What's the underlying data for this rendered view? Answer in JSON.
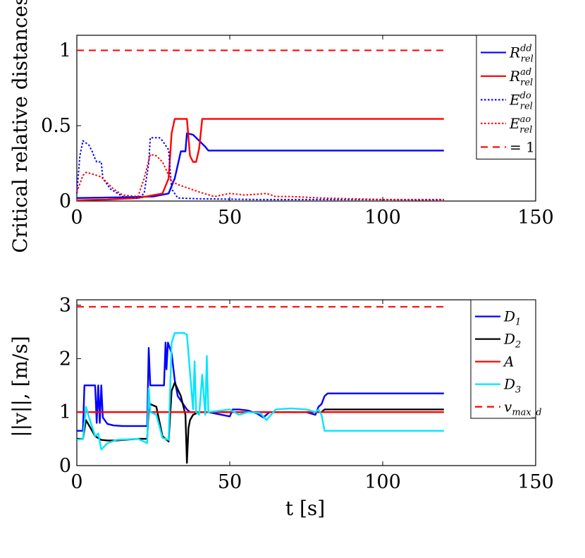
{
  "chart_data": [
    {
      "type": "line",
      "ylabel": "Critical relative distances",
      "xlabel": "",
      "xlim": [
        0,
        150
      ],
      "ylim": [
        0,
        1.1
      ],
      "xticks": [
        "0",
        "50",
        "100",
        "150"
      ],
      "yticks": [
        "0",
        "0.5",
        "1"
      ],
      "legend_position": "top-right",
      "series": [
        {
          "name": "R_rel^dd",
          "label_main": "R",
          "label_sup": "dd",
          "label_sub": "rel",
          "color": "#0000ff",
          "style": "solid",
          "x": [
            0,
            15,
            25,
            30,
            32,
            34,
            35.5,
            36,
            38,
            40,
            42,
            43,
            120
          ],
          "y": [
            0.02,
            0.025,
            0.03,
            0.05,
            0.15,
            0.33,
            0.33,
            0.45,
            0.44,
            0.4,
            0.36,
            0.335,
            0.335
          ]
        },
        {
          "name": "R_rel^ad",
          "label_main": "R",
          "label_sup": "ad",
          "label_sub": "rel",
          "color": "#ff0000",
          "style": "solid",
          "x": [
            0,
            10,
            20,
            28,
            30,
            31,
            32,
            36,
            37,
            38,
            39,
            40,
            41,
            42,
            120
          ],
          "y": [
            0.005,
            0.01,
            0.02,
            0.05,
            0.15,
            0.45,
            0.545,
            0.545,
            0.3,
            0.26,
            0.26,
            0.35,
            0.545,
            0.545,
            0.545
          ]
        },
        {
          "name": "E_rel^do",
          "label_main": "E",
          "label_sup": "do",
          "label_sub": "rel",
          "color": "#0000ff",
          "style": "dotted",
          "x": [
            0,
            1,
            2,
            4,
            5,
            6,
            6.5,
            8,
            8.5,
            11,
            15,
            20,
            22,
            23.5,
            24,
            27,
            28,
            30,
            31,
            33,
            40,
            60,
            80,
            100,
            120
          ],
          "y": [
            0.05,
            0.3,
            0.4,
            0.37,
            0.33,
            0.28,
            0.26,
            0.26,
            0.15,
            0.08,
            0.03,
            0.02,
            0.05,
            0.25,
            0.42,
            0.42,
            0.4,
            0.34,
            0.08,
            0.02,
            0.015,
            0.01,
            0.01,
            0.01,
            0.01
          ]
        },
        {
          "name": "E_rel^ao",
          "label_main": "E",
          "label_sup": "ao",
          "label_sub": "rel",
          "color": "#ff0000",
          "style": "dotted",
          "x": [
            0,
            2,
            3,
            5,
            8,
            12,
            15,
            20,
            22,
            24,
            26,
            28,
            31,
            33,
            40,
            45,
            50,
            55,
            62,
            65,
            70,
            80,
            100,
            120
          ],
          "y": [
            0.06,
            0.17,
            0.19,
            0.18,
            0.16,
            0.08,
            0.04,
            0.03,
            0.15,
            0.31,
            0.3,
            0.26,
            0.13,
            0.11,
            0.06,
            0.03,
            0.05,
            0.04,
            0.05,
            0.03,
            0.03,
            0.02,
            0.01,
            0.005
          ]
        },
        {
          "name": "= 1",
          "label_main": "= 1",
          "label_sup": "",
          "label_sub": "",
          "color": "#ff0000",
          "style": "dashed",
          "x": [
            0,
            120
          ],
          "y": [
            1,
            1
          ]
        }
      ]
    },
    {
      "type": "line",
      "ylabel": "||v||, [m/s]",
      "xlabel": "t [s]",
      "xlim": [
        0,
        150
      ],
      "ylim": [
        0,
        3.1
      ],
      "xticks": [
        "0",
        "50",
        "100",
        "150"
      ],
      "yticks": [
        "0",
        "1",
        "2",
        "3"
      ],
      "legend_position": "top-right",
      "series": [
        {
          "name": "D_1",
          "label_main": "D",
          "label_sup": "",
          "label_sub": "1",
          "color": "#0000ff",
          "style": "solid",
          "x": [
            0,
            2,
            2.5,
            6,
            6.5,
            7,
            7.5,
            8,
            8.5,
            10,
            12,
            15,
            20,
            23,
            23.5,
            24,
            24.5,
            28.5,
            29,
            29.3,
            29.8,
            31,
            32,
            33,
            36,
            37,
            38,
            40,
            41,
            42,
            43,
            50,
            51,
            53,
            56,
            59,
            61,
            63,
            65,
            70,
            75,
            78,
            79,
            80,
            81,
            82,
            120
          ],
          "y": [
            0.65,
            0.65,
            1.5,
            1.5,
            0.8,
            1.5,
            0.8,
            1.5,
            0.9,
            0.78,
            0.75,
            0.74,
            0.74,
            0.74,
            2.2,
            1.5,
            1.5,
            1.5,
            2.3,
            1.8,
            2.3,
            2.1,
            1.6,
            1.3,
            1.05,
            1.0,
            1.0,
            1.0,
            1.0,
            1.0,
            1.0,
            0.92,
            1.05,
            1.05,
            1.03,
            0.97,
            0.9,
            1.0,
            1.0,
            1.0,
            1.0,
            0.95,
            1.1,
            1.15,
            1.3,
            1.35,
            1.35
          ]
        },
        {
          "name": "D_2",
          "label_main": "D",
          "label_sup": "",
          "label_sub": "2",
          "color": "#000000",
          "style": "solid",
          "x": [
            0,
            2,
            3,
            5,
            6,
            8,
            10,
            13,
            20,
            23,
            23.5,
            24,
            26,
            28,
            30,
            31,
            32,
            34,
            35.5,
            36,
            36.5,
            37,
            38,
            40,
            45,
            60,
            80,
            81,
            82,
            120
          ],
          "y": [
            0.5,
            0.5,
            0.85,
            0.65,
            0.55,
            0.48,
            0.47,
            0.47,
            0.5,
            0.5,
            1.05,
            1.15,
            1.1,
            0.55,
            0.45,
            1.4,
            1.55,
            1.3,
            0.95,
            0.05,
            0.7,
            0.85,
            0.95,
            1.0,
            1.0,
            1.0,
            1.0,
            1.05,
            1.05,
            1.05
          ]
        },
        {
          "name": "A",
          "label_main": "A",
          "label_sup": "",
          "label_sub": "",
          "color": "#ff0000",
          "style": "solid",
          "x": [
            0,
            120
          ],
          "y": [
            1.0,
            1.0
          ]
        },
        {
          "name": "D_3",
          "label_main": "D",
          "label_sup": "",
          "label_sub": "3",
          "color": "#00e5ff",
          "style": "solid",
          "x": [
            0,
            2,
            3,
            4,
            6,
            7,
            8,
            10,
            13,
            20,
            23,
            23.5,
            24,
            26,
            28,
            30,
            31,
            32,
            35,
            36,
            38,
            38.5,
            39,
            40,
            41,
            42,
            42.5,
            43,
            50,
            53,
            56,
            60,
            62,
            65,
            70,
            75,
            78,
            79,
            80,
            81,
            120
          ],
          "y": [
            0.48,
            0.5,
            1.1,
            0.9,
            0.55,
            0.6,
            0.3,
            0.42,
            0.48,
            0.5,
            0.42,
            1.45,
            1.0,
            0.95,
            0.52,
            0.48,
            2.3,
            2.48,
            2.48,
            2.45,
            1.05,
            1.95,
            1.0,
            0.95,
            1.7,
            0.95,
            2.05,
            1.0,
            1.05,
            0.95,
            1.0,
            0.98,
            0.85,
            1.05,
            1.07,
            1.05,
            1.0,
            1.05,
            0.95,
            0.65,
            0.65
          ]
        },
        {
          "name": "v_max_d",
          "label_main": "v",
          "label_sup": "",
          "label_sub": "max_d",
          "color": "#ff0000",
          "style": "dashed",
          "x": [
            0,
            120
          ],
          "y": [
            2.97,
            2.97
          ]
        }
      ]
    }
  ]
}
